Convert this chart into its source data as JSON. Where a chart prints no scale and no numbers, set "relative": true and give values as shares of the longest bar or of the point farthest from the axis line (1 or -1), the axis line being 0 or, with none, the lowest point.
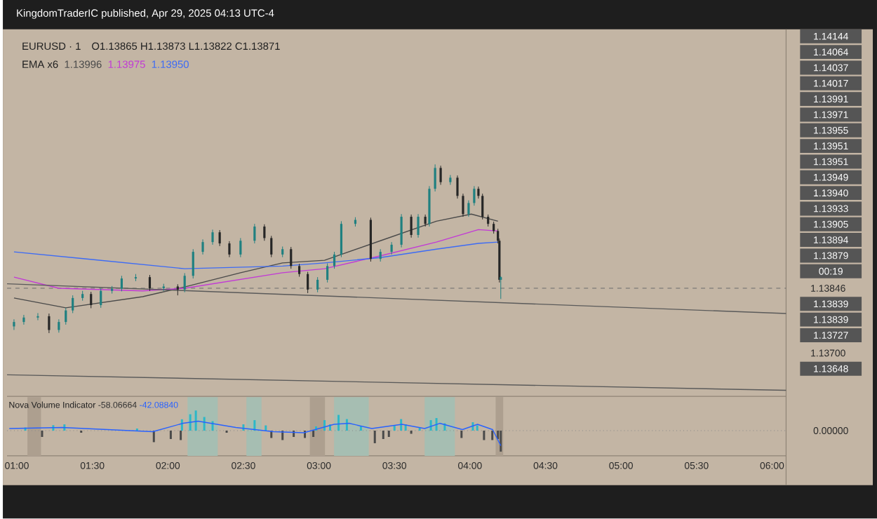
{
  "chart_data": [
    {
      "type": "candlestick",
      "title": "EURUSD · 1",
      "subtitle": "O1.13865 H1.13873 L1.13822 C1.13871",
      "legend_title": "EMA x6",
      "legend": "top left",
      "tick_labels": "y",
      "xlim": [
        0.935,
        6.093
      ],
      "ylim": [
        1.13604,
        1.14426
      ],
      "yticks": [
        {
          "value": 1.13846,
          "label": "1.13846"
        },
        {
          "value": 1.137,
          "label": "1.13700"
        }
      ],
      "x": [
        0.981,
        1.046,
        1.139,
        1.213,
        1.278,
        1.324,
        1.37,
        1.435,
        1.491,
        1.556,
        1.63,
        1.694,
        1.787,
        1.88,
        1.972,
        2.065,
        2.111,
        2.167,
        2.231,
        2.296,
        2.343,
        2.407,
        2.481,
        2.574,
        2.639,
        2.685,
        2.759,
        2.815,
        2.87,
        2.926,
        2.991,
        3.056,
        3.102,
        3.148,
        3.241,
        3.343,
        3.407,
        3.481,
        3.546,
        3.611,
        3.657,
        3.704,
        3.731,
        3.769,
        3.806,
        3.87,
        3.917,
        3.954,
        3.991,
        4.028,
        4.056,
        4.083,
        4.12,
        4.157,
        4.185,
        4.195,
        4.204
      ],
      "ohlc": [
        [
          1.1376,
          1.13776,
          1.13752,
          1.1377
        ],
        [
          1.1377,
          1.13786,
          1.13764,
          1.1378
        ],
        [
          1.1378,
          1.1379,
          1.13774,
          1.13783
        ],
        [
          1.13783,
          1.13789,
          1.13745,
          1.13752
        ],
        [
          1.13752,
          1.13776,
          1.13746,
          1.1377
        ],
        [
          1.1377,
          1.13802,
          1.13764,
          1.13796
        ],
        [
          1.13796,
          1.1383,
          1.1379,
          1.13824
        ],
        [
          1.13824,
          1.1384,
          1.13818,
          1.13833
        ],
        [
          1.13833,
          1.13838,
          1.13801,
          1.13808
        ],
        [
          1.13808,
          1.13846,
          1.13802,
          1.1384
        ],
        [
          1.1384,
          1.13851,
          1.13834,
          1.13845
        ],
        [
          1.13845,
          1.13874,
          1.13839,
          1.13868
        ],
        [
          1.13868,
          1.13878,
          1.13862,
          1.13871
        ],
        [
          1.13871,
          1.13876,
          1.1384,
          1.13846
        ],
        [
          1.13846,
          1.13856,
          1.1384,
          1.1385
        ],
        [
          1.1385,
          1.13855,
          1.1383,
          1.13843
        ],
        [
          1.13843,
          1.1388,
          1.13837,
          1.13874
        ],
        [
          1.13874,
          1.13934,
          1.13868,
          1.13928
        ],
        [
          1.13928,
          1.13956,
          1.13922,
          1.1395
        ],
        [
          1.1395,
          1.13978,
          1.13944,
          1.13972
        ],
        [
          1.13972,
          1.13977,
          1.13941,
          1.13947
        ],
        [
          1.13947,
          1.13952,
          1.13916,
          1.13922
        ],
        [
          1.13922,
          1.13959,
          1.13916,
          1.13953
        ],
        [
          1.13953,
          1.13991,
          1.13947,
          1.13985
        ],
        [
          1.13985,
          1.1399,
          1.13953,
          1.13959
        ],
        [
          1.13959,
          1.13964,
          1.13916,
          1.13922
        ],
        [
          1.13922,
          1.1394,
          1.13916,
          1.13934
        ],
        [
          1.13934,
          1.13939,
          1.1389,
          1.13896
        ],
        [
          1.13896,
          1.13901,
          1.13872,
          1.13878
        ],
        [
          1.13878,
          1.13883,
          1.13835,
          1.13843
        ],
        [
          1.13843,
          1.13871,
          1.13837,
          1.13865
        ],
        [
          1.13865,
          1.13902,
          1.13859,
          1.13896
        ],
        [
          1.13896,
          1.13928,
          1.1389,
          1.13922
        ],
        [
          1.13922,
          1.13997,
          1.13916,
          1.13991
        ],
        [
          1.13991,
          1.14006,
          1.13985,
          1.14
        ],
        [
          1.14,
          1.14005,
          1.13906,
          1.13912
        ],
        [
          1.13912,
          1.13934,
          1.13906,
          1.13928
        ],
        [
          1.13928,
          1.1395,
          1.13922,
          1.13944
        ],
        [
          1.13944,
          1.14013,
          1.13938,
          1.14007
        ],
        [
          1.14007,
          1.14012,
          1.1396,
          1.13966
        ],
        [
          1.13966,
          1.14013,
          1.1396,
          1.14007
        ],
        [
          1.14007,
          1.14012,
          1.13985,
          1.13991
        ],
        [
          1.13991,
          1.14076,
          1.13985,
          1.1407
        ],
        [
          1.1407,
          1.14125,
          1.14064,
          1.14117
        ],
        [
          1.14117,
          1.14122,
          1.14079,
          1.14085
        ],
        [
          1.14085,
          1.14101,
          1.14079,
          1.14095
        ],
        [
          1.14095,
          1.141,
          1.14048,
          1.14054
        ],
        [
          1.14054,
          1.14059,
          1.14007,
          1.14013
        ],
        [
          1.14013,
          1.14044,
          1.14007,
          1.14038
        ],
        [
          1.14038,
          1.14076,
          1.14032,
          1.1407
        ],
        [
          1.1407,
          1.14075,
          1.14048,
          1.14054
        ],
        [
          1.14054,
          1.14059,
          1.14001,
          1.14007
        ],
        [
          1.14007,
          1.14012,
          1.13985,
          1.13991
        ],
        [
          1.13991,
          1.13996,
          1.13969,
          1.13975
        ],
        [
          1.13975,
          1.1398,
          1.13947,
          1.13953
        ],
        [
          1.13953,
          1.13958,
          1.13859,
          1.13865
        ],
        [
          1.13865,
          1.13873,
          1.13822,
          1.13871
        ]
      ],
      "series": [
        {
          "type": "line",
          "name": "1.13996",
          "color": "#4a4a4a",
          "x": [
            0.981,
            1.324,
            1.833,
            2.111,
            2.481,
            2.759,
            3.037,
            3.407,
            3.778,
            4.009,
            4.185
          ],
          "values": [
            1.13824,
            1.13802,
            1.13827,
            1.13849,
            1.13881,
            1.13903,
            1.13909,
            1.13953,
            1.13997,
            1.14013,
            1.13997
          ]
        },
        {
          "type": "line",
          "name": "1.13975",
          "color": "#c23ad6",
          "x": [
            0.981,
            1.278,
            1.833,
            2.111,
            2.759,
            3.037,
            3.407,
            3.778,
            4.056,
            4.185
          ],
          "values": [
            1.13871,
            1.13846,
            1.1384,
            1.13846,
            1.13881,
            1.1389,
            1.13919,
            1.1395,
            1.13978,
            1.13975
          ]
        },
        {
          "type": "line",
          "name": "1.13950",
          "color": "#3d6bf5",
          "x": [
            0.981,
            1.463,
            2.111,
            2.759,
            3.037,
            3.407,
            3.778,
            4.056,
            4.185
          ],
          "values": [
            1.13928,
            1.13912,
            1.1389,
            1.13896,
            1.13903,
            1.13915,
            1.13934,
            1.13947,
            1.1395
          ]
        },
        {
          "type": "line",
          "color": "#5a5a5a",
          "x": [
            0.935,
            6.093
          ],
          "values": [
            1.13856,
            1.13789
          ]
        },
        {
          "type": "line",
          "color": "#5a5a5a",
          "x": [
            0.935,
            6.093
          ],
          "values": [
            1.13651,
            1.13616
          ]
        }
      ],
      "ref_lines": [
        {
          "axis": "y",
          "value": 1.13846,
          "line_style": "dashed",
          "color": "#6b6b6b"
        }
      ],
      "annotations": [
        "KingdomTraderIC published, Apr 29, 2025 04:13 UTC-4",
        "1.14144",
        "1.14064",
        "1.14037",
        "1.14017",
        "1.13991",
        "1.13971",
        "1.13955",
        "1.13951",
        "1.13951",
        "1.13949",
        "1.13940",
        "1.13933",
        "1.13905",
        "1.13894",
        "1.13879",
        "00:19",
        "1.13839",
        "1.13839",
        "1.13727",
        "1.13648"
      ]
    },
    {
      "type": "bar",
      "title": "Nova Volume Indicator",
      "relative": true,
      "tick_labels": "x",
      "xlim": [
        0.935,
        6.093
      ],
      "xticks": [
        {
          "value": 1,
          "label": "01:00"
        },
        {
          "value": 1.5,
          "label": "01:30"
        },
        {
          "value": 2,
          "label": "02:00"
        },
        {
          "value": 2.5,
          "label": "02:30"
        },
        {
          "value": 3,
          "label": "03:00"
        },
        {
          "value": 3.5,
          "label": "03:30"
        },
        {
          "value": 4,
          "label": "04:00"
        },
        {
          "value": 4.5,
          "label": "04:30"
        },
        {
          "value": 5,
          "label": "05:00"
        },
        {
          "value": 5.5,
          "label": "05:30"
        },
        {
          "value": 6,
          "label": "06:00"
        }
      ],
      "series": [
        {
          "color": "#2bb8c8",
          "x": [
            1.056,
            1.241,
            1.315,
            1.537,
            1.648,
            1.796,
            2.093,
            2.148,
            2.185,
            2.241,
            2.296,
            2.5,
            2.574,
            2.648,
            2.981,
            3.037,
            3.074,
            3.13,
            3.185,
            3.278,
            3.5,
            3.544,
            3.574,
            3.667,
            3.741,
            3.778,
            3.833,
            4.019,
            4.048
          ],
          "values": [
            0.15,
            0.26,
            0.3,
            null,
            null,
            0.1,
            0.54,
            0.78,
            0.96,
            0.65,
            0.45,
            0.3,
            0.5,
            0.25,
            0.2,
            0.5,
            0.3,
            0.75,
            0.55,
            0.2,
            0.25,
            0.55,
            0.3,
            0.15,
            0.5,
            0.6,
            0.35,
            0.4,
            0.25
          ]
        },
        {
          "color": "#4a4a4a",
          "x": [
            1.167,
            1.426,
            1.907,
            2.019,
            2.085,
            2.389,
            2.685,
            2.759,
            2.833,
            2.907,
            2.963,
            3.37,
            3.426,
            3.463,
            3.611,
            3.944,
            4.093,
            4.148,
            4.185,
            4.204
          ],
          "values": [
            -0.3,
            -0.1,
            -0.55,
            -0.4,
            -0.45,
            -0.1,
            -0.35,
            -0.45,
            -0.3,
            -0.35,
            -0.3,
            -0.6,
            -0.4,
            -0.3,
            -0.15,
            -0.35,
            -0.45,
            -0.45,
            -0.4,
            -1
          ]
        },
        {
          "type": "line",
          "color": "#2962ff",
          "x": [
            0.95,
            1.3,
            1.6,
            1.9,
            2.1,
            2.2,
            2.45,
            2.7,
            2.9,
            3.1,
            3.2,
            3.35,
            3.55,
            3.7,
            3.8,
            3.95,
            4.05,
            4.15,
            4.204
          ],
          "values": [
            0.1,
            0.15,
            0.05,
            -0.05,
            0.35,
            0.45,
            0.15,
            -0.05,
            -0.1,
            0.3,
            0.35,
            0.1,
            0.3,
            0.1,
            0.35,
            0.05,
            0.3,
            0.05,
            -0.72
          ]
        }
      ],
      "bands": [
        {
          "axis": "x",
          "from": 2.13,
          "to": 2.33,
          "color": "#a6beb2"
        },
        {
          "axis": "x",
          "from": 2.52,
          "to": 2.62,
          "color": "#a6beb2"
        },
        {
          "axis": "x",
          "from": 3.1,
          "to": 3.33,
          "color": "#a6beb2"
        },
        {
          "axis": "x",
          "from": 3.7,
          "to": 3.9,
          "color": "#a6beb2"
        },
        {
          "axis": "x",
          "from": 1.07,
          "to": 1.16,
          "color": "#ad9f8f"
        },
        {
          "axis": "x",
          "from": 2.94,
          "to": 3.04,
          "color": "#ad9f8f"
        },
        {
          "axis": "x",
          "from": 4.17,
          "to": 4.22,
          "color": "#ad9f8f"
        }
      ],
      "ref_lines": [
        {
          "axis": "y",
          "value": 0,
          "label": "0.00000",
          "line_style": "dotted",
          "color": "#8a8a8a"
        }
      ],
      "annotations": [
        "-58.06664",
        "-42.08840"
      ]
    }
  ]
}
